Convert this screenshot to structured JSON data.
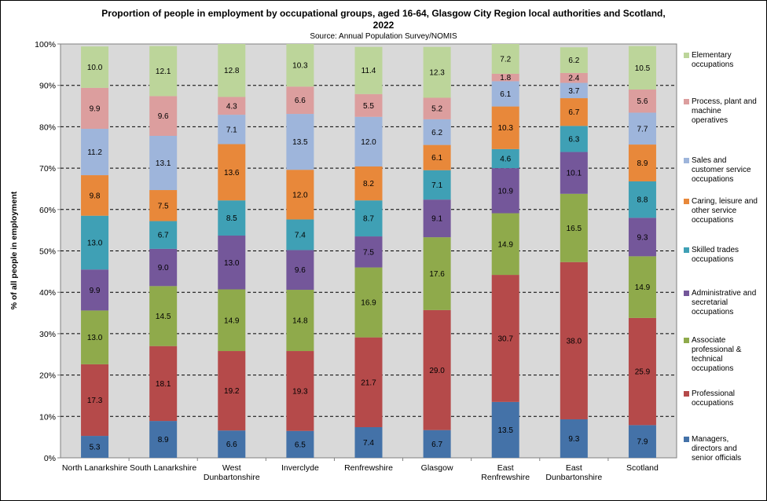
{
  "chart_data": {
    "type": "bar",
    "stacked": true,
    "title_lines": [
      "Proportion of people in employment by occupational groups, aged 16-64, Glasgow City Region local authorities and Scotland,",
      "2022"
    ],
    "subtitle": "Source: Annual Population Survey/NOMIS",
    "ylabel": "% of all people in employment",
    "xlabel": "",
    "ylim": [
      0,
      100
    ],
    "yticks": [
      "0%",
      "10%",
      "20%",
      "30%",
      "40%",
      "50%",
      "60%",
      "70%",
      "80%",
      "90%",
      "100%"
    ],
    "grid": true,
    "legend_position": "right",
    "categories": [
      [
        "North Lanarkshire"
      ],
      [
        "South Lanarkshire"
      ],
      [
        "West",
        "Dunbartonshire"
      ],
      [
        "Inverclyde"
      ],
      [
        "Renfrewshire"
      ],
      [
        "Glasgow"
      ],
      [
        "East",
        "Renfrewshire"
      ],
      [
        "East",
        "Dunbartonshire"
      ],
      [
        "Scotland"
      ]
    ],
    "series": [
      {
        "name_lines": [
          "Managers,",
          "directors and",
          "senior officials"
        ],
        "color": "#4472a8",
        "values": [
          5.3,
          8.9,
          6.6,
          6.5,
          7.4,
          6.7,
          13.5,
          9.3,
          7.9
        ]
      },
      {
        "name_lines": [
          "Professional",
          "occupations"
        ],
        "color": "#b54a4a",
        "values": [
          17.3,
          18.1,
          19.2,
          19.3,
          21.7,
          29.0,
          30.7,
          38.0,
          25.9
        ]
      },
      {
        "name_lines": [
          "Associate",
          "professional &",
          "technical",
          "occupations"
        ],
        "color": "#8faa4b",
        "values": [
          13.0,
          14.5,
          14.9,
          14.8,
          16.9,
          17.6,
          14.9,
          16.5,
          14.9
        ]
      },
      {
        "name_lines": [
          "Administrative and",
          "secretarial",
          "occupations"
        ],
        "color": "#74579a",
        "values": [
          9.9,
          9.0,
          13.0,
          9.6,
          7.5,
          9.1,
          10.9,
          10.1,
          9.3
        ]
      },
      {
        "name_lines": [
          "Skilled trades",
          "occupations"
        ],
        "color": "#3fa0b5",
        "values": [
          13.0,
          6.7,
          8.5,
          7.4,
          8.7,
          7.1,
          4.6,
          6.3,
          8.8
        ]
      },
      {
        "name_lines": [
          "Caring, leisure and",
          "other service",
          "occupations"
        ],
        "color": "#e8883a",
        "values": [
          9.8,
          7.5,
          13.6,
          12.0,
          8.2,
          6.1,
          10.3,
          6.7,
          8.9
        ]
      },
      {
        "name_lines": [
          "Sales and",
          "customer service",
          "occupations"
        ],
        "color": "#9eb5db",
        "values": [
          11.2,
          13.1,
          7.1,
          13.5,
          12.0,
          6.2,
          6.1,
          3.7,
          7.7
        ]
      },
      {
        "name_lines": [
          "Process, plant and",
          "machine",
          "operatives"
        ],
        "color": "#dc9e9e",
        "values": [
          9.9,
          9.6,
          4.3,
          6.6,
          5.5,
          5.2,
          1.8,
          2.4,
          5.6
        ]
      },
      {
        "name_lines": [
          "Elementary",
          "occupations"
        ],
        "color": "#bcd59a",
        "values": [
          10.0,
          12.1,
          12.8,
          10.3,
          11.4,
          12.3,
          7.2,
          6.2,
          10.5
        ]
      }
    ]
  }
}
